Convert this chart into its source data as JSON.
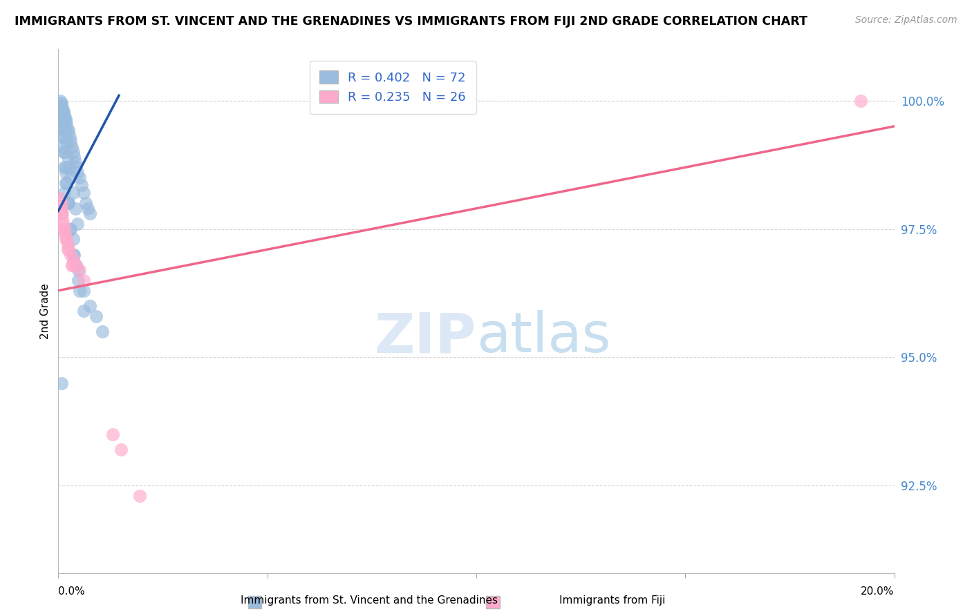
{
  "title": "IMMIGRANTS FROM ST. VINCENT AND THE GRENADINES VS IMMIGRANTS FROM FIJI 2ND GRADE CORRELATION CHART",
  "source": "Source: ZipAtlas.com",
  "ylabel_label": "2nd Grade",
  "blue_label": "Immigrants from St. Vincent and the Grenadines",
  "pink_label": "Immigrants from Fiji",
  "R_blue": 0.402,
  "N_blue": 72,
  "R_pink": 0.235,
  "N_pink": 26,
  "blue_color": "#99BBDD",
  "pink_color": "#FFAACC",
  "blue_line_color": "#2255AA",
  "pink_line_color": "#EE6688",
  "xlim": [
    0.0,
    20.0
  ],
  "ylim": [
    90.8,
    101.0
  ],
  "yticks": [
    92.5,
    95.0,
    97.5,
    100.0
  ],
  "ytick_labels": [
    "92.5%",
    "95.0%",
    "97.5%",
    "100.0%"
  ],
  "blue_line_x0": 0.0,
  "blue_line_y0": 97.85,
  "blue_line_x1": 1.45,
  "blue_line_y1": 100.1,
  "pink_line_x0": 0.0,
  "pink_line_y0": 96.3,
  "pink_line_x1": 20.0,
  "pink_line_y1": 99.5,
  "blue_scatter_x": [
    0.05,
    0.07,
    0.08,
    0.1,
    0.12,
    0.13,
    0.15,
    0.17,
    0.18,
    0.2,
    0.22,
    0.25,
    0.28,
    0.3,
    0.32,
    0.35,
    0.38,
    0.4,
    0.42,
    0.45,
    0.5,
    0.55,
    0.6,
    0.65,
    0.7,
    0.75,
    0.08,
    0.1,
    0.13,
    0.16,
    0.19,
    0.22,
    0.26,
    0.3,
    0.35,
    0.4,
    0.45,
    0.05,
    0.07,
    0.09,
    0.12,
    0.15,
    0.18,
    0.22,
    0.28,
    0.35,
    0.42,
    0.5,
    0.06,
    0.08,
    0.11,
    0.14,
    0.17,
    0.2,
    0.24,
    0.3,
    0.38,
    0.48,
    0.6,
    0.75,
    0.9,
    1.05,
    0.07,
    0.12,
    0.18,
    0.25,
    0.35,
    0.47,
    0.6,
    0.04,
    0.15,
    0.08
  ],
  "blue_scatter_y": [
    100.0,
    99.9,
    99.95,
    99.85,
    99.8,
    99.75,
    99.7,
    99.65,
    99.6,
    99.55,
    99.45,
    99.4,
    99.3,
    99.2,
    99.1,
    99.0,
    98.9,
    98.8,
    98.7,
    98.6,
    98.5,
    98.35,
    98.2,
    98.0,
    97.9,
    97.8,
    99.9,
    99.8,
    99.6,
    99.4,
    99.2,
    98.9,
    98.7,
    98.5,
    98.2,
    97.9,
    97.6,
    99.7,
    99.5,
    99.3,
    99.0,
    98.7,
    98.4,
    98.0,
    97.5,
    97.0,
    96.8,
    96.3,
    99.8,
    99.6,
    99.3,
    99.0,
    98.7,
    98.4,
    98.0,
    97.5,
    97.0,
    96.7,
    96.3,
    96.0,
    95.8,
    95.5,
    99.5,
    99.1,
    98.6,
    98.0,
    97.3,
    96.5,
    95.9,
    99.7,
    98.2,
    94.5
  ],
  "pink_scatter_x": [
    0.05,
    0.08,
    0.1,
    0.13,
    0.16,
    0.2,
    0.25,
    0.3,
    0.35,
    0.42,
    0.5,
    0.6,
    0.08,
    0.12,
    0.17,
    0.23,
    0.32,
    0.07,
    0.1,
    0.15,
    0.22,
    0.32,
    1.3,
    1.5,
    1.95,
    19.2
  ],
  "pink_scatter_y": [
    98.1,
    97.9,
    97.7,
    97.6,
    97.4,
    97.3,
    97.1,
    97.0,
    96.9,
    96.8,
    96.7,
    96.5,
    97.8,
    97.5,
    97.3,
    97.1,
    96.8,
    98.0,
    97.8,
    97.5,
    97.2,
    96.8,
    93.5,
    93.2,
    92.3,
    100.0
  ]
}
